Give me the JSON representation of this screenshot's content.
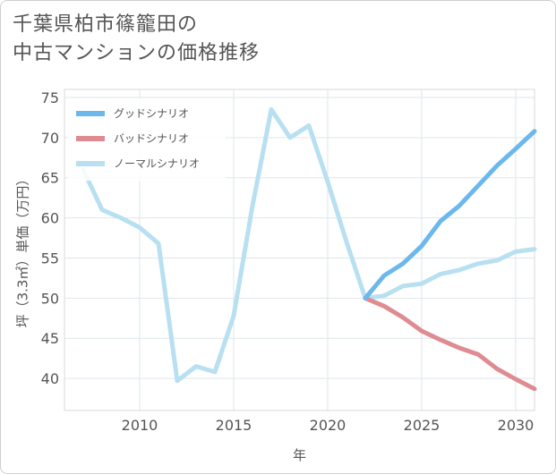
{
  "title": "千葉県柏市篠籠田の\n中古マンションの価格推移",
  "chart_data": {
    "type": "line",
    "title": "千葉県柏市篠籠田の中古マンションの価格推移",
    "xlabel": "年",
    "ylabel": "坪（3.3㎡）単価（万円）",
    "xlim": [
      2006,
      2031
    ],
    "ylim": [
      36,
      76
    ],
    "xticks": [
      2010,
      2015,
      2020,
      2025,
      2030
    ],
    "yticks": [
      40,
      45,
      50,
      55,
      60,
      65,
      70,
      75
    ],
    "grid": true,
    "legend_position": "top-left",
    "series": [
      {
        "name": "グッドシナリオ",
        "color": "#6cb8ec",
        "x": [
          2022,
          2023,
          2024,
          2025,
          2026,
          2027,
          2028,
          2029,
          2030,
          2031
        ],
        "values": [
          50.0,
          52.8,
          54.3,
          56.5,
          59.6,
          61.5,
          64.0,
          66.5,
          68.6,
          70.8
        ]
      },
      {
        "name": "バッドシナリオ",
        "color": "#de8c92",
        "x": [
          2022,
          2023,
          2024,
          2025,
          2026,
          2027,
          2028,
          2029,
          2030,
          2031
        ],
        "values": [
          50.0,
          49.0,
          47.6,
          45.9,
          44.8,
          43.8,
          43.0,
          41.2,
          39.9,
          38.7
        ]
      },
      {
        "name": "ノーマルシナリオ",
        "color": "#b8e0f1",
        "x": [
          2007,
          2008,
          2009,
          2010,
          2011,
          2012,
          2013,
          2014,
          2015,
          2016,
          2017,
          2018,
          2019,
          2020,
          2021,
          2022,
          2023,
          2024,
          2025,
          2026,
          2027,
          2028,
          2029,
          2030,
          2031
        ],
        "values": [
          66.0,
          61.0,
          60.0,
          58.8,
          56.8,
          39.7,
          41.5,
          40.8,
          47.8,
          61.5,
          73.5,
          70.0,
          71.5,
          64.5,
          57.0,
          50.0,
          50.3,
          51.5,
          51.8,
          53.0,
          53.5,
          54.3,
          54.7,
          55.8,
          56.1
        ]
      }
    ]
  }
}
